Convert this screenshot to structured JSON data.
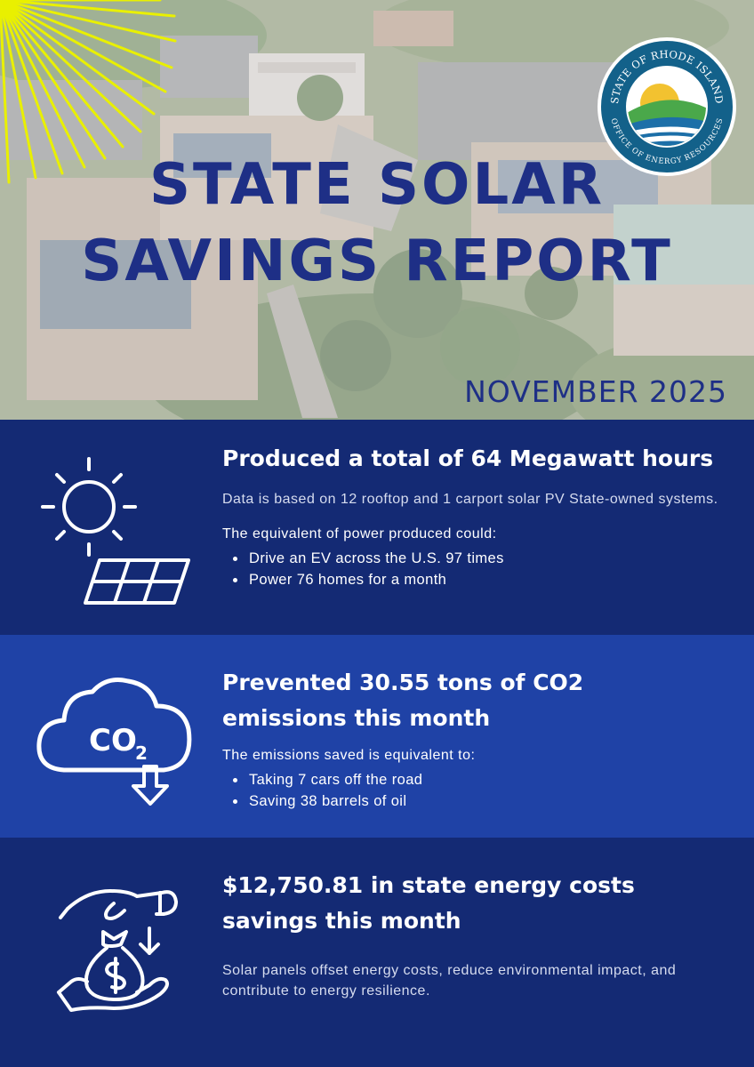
{
  "header": {
    "title_line1": "STATE SOLAR",
    "title_line2": "SAVINGS REPORT",
    "date": "NOVEMBER 2025",
    "seal": {
      "top_text": "STATE OF RHODE ISLAND",
      "bottom_text": "OFFICE OF ENERGY RESOURCES"
    }
  },
  "production": {
    "icon": "sun-solar-panel-icon",
    "heading": "Produced a total of 64 Megawatt hours",
    "basis": "Data is based on 12 rooftop and 1 carport solar PV State-owned systems.",
    "intro": "The equivalent of power produced could:",
    "items": [
      "Drive an EV across the U.S. 97 times",
      "Power 76 homes for a month"
    ]
  },
  "emissions": {
    "icon": "co2-cloud-down-arrow-icon",
    "icon_text": "CO",
    "icon_subscript": "2",
    "heading_line1": "Prevented 30.55 tons of CO2",
    "heading_line2": "emissions this month",
    "intro": "The emissions saved is equivalent to:",
    "items": [
      "Taking 7 cars off the road",
      "Saving 38 barrels of oil"
    ]
  },
  "savings": {
    "icon": "money-bag-hands-icon",
    "heading_line1": "$12,750.81 in state energy costs",
    "heading_line2": "savings this month",
    "description": "Solar panels offset energy costs, reduce environmental impact, and contribute to energy resilience."
  },
  "colors": {
    "navy": "#142a74",
    "royal_blue": "#1f42a6",
    "title_blue": "#1e2f86",
    "ray_yellow": "#e9f000"
  }
}
